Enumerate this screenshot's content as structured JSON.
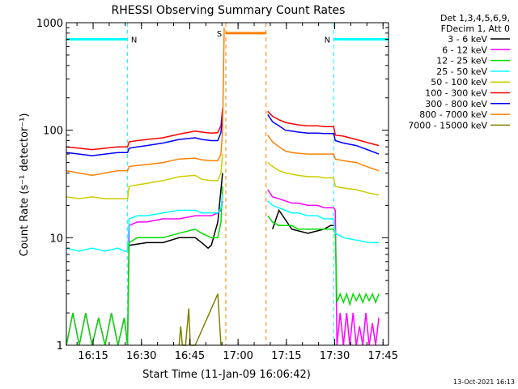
{
  "chart_data": {
    "type": "line",
    "title": "RHESSI Observing Summary Count Rates",
    "ylabel": "Count Rate (s⁻¹ detector⁻¹)",
    "xlabel": "Start Time (11-Jan-09 16:06:42)",
    "yscale": "log",
    "ylim": [
      1,
      1000
    ],
    "xlim_minutes_after_start": [
      0,
      100
    ],
    "y_ticks": [
      "1",
      "10",
      "100",
      "1000"
    ],
    "x_ticks": [
      {
        "label": "16:15",
        "minute": 8.3
      },
      {
        "label": "16:30",
        "minute": 23.3
      },
      {
        "label": "16:45",
        "minute": 38.3
      },
      {
        "label": "17:00",
        "minute": 53.3
      },
      {
        "label": "17:15",
        "minute": 68.3
      },
      {
        "label": "17:30",
        "minute": 83.3
      },
      {
        "label": "17:45",
        "minute": 98.3
      }
    ],
    "legend": {
      "placement": "right",
      "header": [
        "Det 1,3,4,5,6,9,",
        "FDecim 1, Att 0"
      ]
    },
    "grid": false,
    "series": [
      {
        "name": "3 - 6 keV",
        "color": "#000000",
        "x": [
          19,
          19.5,
          25,
          30,
          35,
          40,
          42,
          44,
          45,
          47,
          48.5,
          49,
          50,
          52,
          55,
          58,
          60,
          62,
          64,
          66,
          70,
          75,
          80,
          82,
          83,
          83.5
        ],
        "y": [
          8,
          8.5,
          9,
          9,
          10,
          10,
          9,
          8,
          8.5,
          14,
          40,
          null,
          null,
          null,
          null,
          null,
          null,
          null,
          12,
          18,
          12,
          11,
          12,
          13,
          13,
          null
        ]
      },
      {
        "name": "6 - 12 keV",
        "color": "#ff00ff",
        "x": [
          0,
          2,
          4,
          6,
          8,
          10,
          12,
          14,
          16,
          18,
          19,
          19.5,
          22,
          25,
          30,
          35,
          40,
          42,
          45,
          47,
          48,
          48.5,
          62.2,
          62.5,
          64,
          66,
          68,
          70,
          72,
          75,
          78,
          80,
          82,
          83,
          83.5,
          84,
          85,
          86,
          87,
          88,
          89,
          90,
          91,
          92,
          93,
          94,
          95,
          96,
          97
        ],
        "y": [
          1,
          2,
          1,
          2,
          1,
          1.8,
          1,
          2,
          1,
          1.8,
          1,
          13,
          14,
          14,
          15,
          15,
          16,
          16,
          16,
          17,
          18,
          22,
          null,
          28,
          24,
          23,
          22,
          21,
          21,
          20,
          20,
          19,
          19,
          19,
          18,
          1,
          2,
          1,
          2,
          1,
          2,
          1,
          1.5,
          1,
          2,
          1,
          1.6,
          1,
          1.8
        ]
      },
      {
        "name": "12 - 25 keV",
        "color": "#00dd00",
        "x": [
          0,
          2,
          4,
          6,
          8,
          10,
          12,
          14,
          16,
          18,
          19,
          19.5,
          22,
          25,
          30,
          35,
          40,
          42,
          45,
          47,
          48,
          48.5,
          62.2,
          62.5,
          64,
          66,
          68,
          70,
          72,
          75,
          78,
          80,
          82,
          83,
          83.5,
          84,
          85,
          86,
          87,
          88,
          89,
          90,
          91,
          92,
          93,
          94,
          95,
          96,
          97
        ],
        "y": [
          1,
          2,
          1,
          2,
          1,
          1.8,
          1,
          2,
          1,
          1.8,
          1,
          9,
          10,
          10,
          10,
          11,
          12,
          11,
          10,
          10,
          14,
          30,
          null,
          16,
          14,
          13,
          13,
          13,
          12,
          12,
          12,
          12,
          12,
          12,
          11,
          2.5,
          3,
          2.5,
          3,
          2.4,
          3,
          2.6,
          3,
          2.5,
          3,
          2.6,
          3,
          2.5,
          3
        ]
      },
      {
        "name": "25 - 50 keV",
        "color": "#00ffff",
        "x": [
          0,
          4,
          8,
          12,
          16,
          18,
          19,
          19.5,
          22,
          25,
          30,
          35,
          40,
          42,
          45,
          47,
          48,
          48.5,
          62.2,
          62.5,
          64,
          66,
          68,
          70,
          72,
          75,
          78,
          80,
          82,
          83,
          83.5,
          86,
          90,
          94,
          97
        ],
        "y": [
          8,
          7.5,
          8,
          7.5,
          8,
          7.5,
          7.5,
          15,
          16,
          16,
          17,
          18,
          18,
          17,
          17,
          17,
          19,
          25,
          null,
          22,
          20,
          19,
          18,
          17,
          17,
          16,
          16,
          15,
          15,
          15,
          11,
          10,
          9.5,
          9,
          9
        ]
      },
      {
        "name": "50 - 100 keV",
        "color": "#cccc00",
        "x": [
          0,
          4,
          8,
          12,
          16,
          18,
          19,
          19.5,
          22,
          25,
          30,
          35,
          40,
          42,
          45,
          47,
          48,
          48.5,
          62.2,
          62.5,
          64,
          66,
          68,
          70,
          72,
          75,
          78,
          80,
          82,
          83,
          83.5,
          86,
          90,
          94,
          97
        ],
        "y": [
          24,
          23,
          24,
          23,
          23,
          23,
          23,
          30,
          31,
          32,
          34,
          37,
          38,
          35,
          34,
          34,
          40,
          60,
          null,
          50,
          46,
          42,
          40,
          39,
          38,
          37,
          37,
          36,
          36,
          36,
          30,
          29,
          28,
          26,
          25
        ]
      },
      {
        "name": "100 - 300 keV",
        "color": "#ff0000",
        "x": [
          0,
          4,
          8,
          12,
          16,
          18,
          19,
          19.5,
          22,
          25,
          30,
          35,
          40,
          42,
          45,
          47,
          48,
          48.5,
          62.2,
          62.5,
          64,
          66,
          68,
          70,
          72,
          75,
          78,
          80,
          82,
          83,
          83.5,
          86,
          90,
          94,
          97
        ],
        "y": [
          70,
          68,
          66,
          68,
          70,
          70,
          70,
          78,
          80,
          82,
          85,
          92,
          98,
          96,
          94,
          95,
          110,
          160,
          null,
          150,
          135,
          125,
          118,
          115,
          112,
          110,
          110,
          108,
          108,
          108,
          90,
          88,
          82,
          76,
          72
        ]
      },
      {
        "name": "300 - 800 keV",
        "color": "#0000ff",
        "x": [
          0,
          4,
          8,
          12,
          16,
          18,
          19,
          19.5,
          22,
          25,
          30,
          35,
          40,
          42,
          45,
          47,
          48,
          48.5,
          62.2,
          62.5,
          64,
          66,
          68,
          70,
          72,
          75,
          78,
          80,
          82,
          83,
          83.5,
          86,
          90,
          94,
          97
        ],
        "y": [
          62,
          60,
          58,
          60,
          62,
          62,
          62,
          68,
          70,
          72,
          76,
          82,
          85,
          82,
          80,
          80,
          95,
          140,
          null,
          140,
          120,
          110,
          100,
          98,
          96,
          94,
          94,
          93,
          93,
          93,
          80,
          76,
          72,
          65,
          60
        ]
      },
      {
        "name": "800 - 7000 keV",
        "color": "#ff8000",
        "x": [
          0,
          4,
          8,
          12,
          16,
          18,
          19,
          19.5,
          22,
          25,
          30,
          35,
          40,
          42,
          45,
          47,
          48,
          48.5,
          49,
          49.3,
          62.2,
          62.5,
          64,
          66,
          68,
          70,
          72,
          75,
          78,
          80,
          82,
          83,
          83.5,
          86,
          90,
          94,
          97
        ],
        "y": [
          42,
          40,
          38,
          40,
          42,
          42,
          42,
          46,
          47,
          48,
          50,
          54,
          55,
          53,
          52,
          52,
          60,
          100,
          900,
          null,
          null,
          90,
          78,
          70,
          64,
          62,
          61,
          60,
          60,
          60,
          60,
          60,
          54,
          52,
          50,
          45,
          42
        ]
      },
      {
        "name": "7000 - 15000 keV",
        "color": "#808000",
        "x": [
          35,
          35.5,
          36,
          37,
          38,
          38.5,
          40,
          47,
          48
        ],
        "y": [
          1,
          1.5,
          1,
          1,
          2.2,
          1,
          1,
          3,
          1
        ]
      }
    ],
    "attenuator_states": [
      {
        "label": "N",
        "kind": "night",
        "color": "#00ffff",
        "from_minute": 0,
        "to_minute": 19,
        "level": 700
      },
      {
        "label": "S",
        "kind": "saa",
        "color": "#ff8000",
        "from_minute": 49.5,
        "to_minute": 62,
        "level": 800
      },
      {
        "label": "N",
        "kind": "night",
        "color": "#00ffff",
        "from_minute": 83,
        "to_minute": 100,
        "level": 700
      }
    ]
  },
  "timestamp": "13-Oct-2021 16:13"
}
